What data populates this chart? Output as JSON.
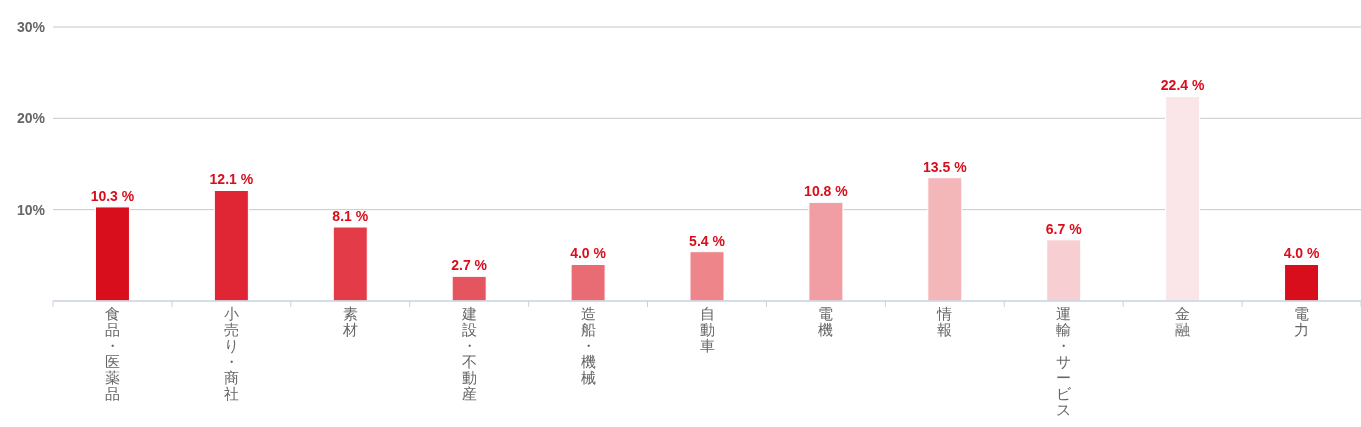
{
  "chart_data": {
    "type": "bar",
    "categories": [
      "食品・医薬品",
      "小売り・商社",
      "素材",
      "建設・不動産",
      "造船・機械",
      "自動車",
      "電機",
      "情報",
      "運輸・サービス",
      "金融",
      "電力"
    ],
    "values": [
      10.3,
      12.1,
      8.1,
      2.7,
      4.0,
      5.4,
      10.8,
      13.5,
      6.7,
      22.4,
      4.0
    ],
    "value_labels": [
      "10.3 %",
      "12.1 %",
      "8.1 %",
      "2.7 %",
      "4.0 %",
      "5.4 %",
      "10.8 %",
      "13.5 %",
      "6.7 %",
      "22.4 %",
      "4.0 %"
    ],
    "colors": [
      "#d90e1c",
      "#e02634",
      "#e33c48",
      "#e55560",
      "#e96c74",
      "#ed858b",
      "#f09ea3",
      "#f3b6b9",
      "#f7cfd2",
      "#fae6e8",
      "#d90e1c"
    ],
    "ylim": [
      0,
      30
    ],
    "yticks": [
      {
        "value": 10,
        "label": "10%"
      },
      {
        "value": 20,
        "label": "20%"
      },
      {
        "value": 30,
        "label": "30%"
      }
    ],
    "grid": "y"
  }
}
